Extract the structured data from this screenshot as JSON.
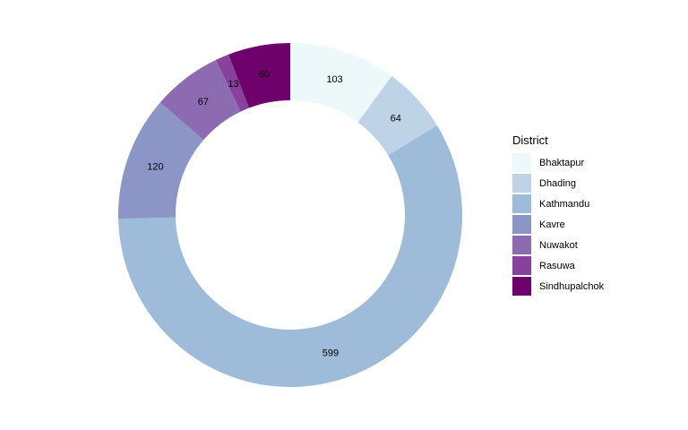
{
  "chart_data": {
    "type": "pie",
    "variant": "donut",
    "legend_title": "District",
    "legend_position": "right",
    "categories": [
      "Bhaktapur",
      "Dhading",
      "Kathmandu",
      "Kavre",
      "Nuwakot",
      "Rasuwa",
      "Sindhupalchok"
    ],
    "values": [
      103,
      64,
      599,
      120,
      67,
      13,
      60
    ],
    "colors": [
      "#edf8fb",
      "#bfd3e6",
      "#9ebcda",
      "#8c96c6",
      "#8c6bb1",
      "#88419d",
      "#6e016b"
    ],
    "grid": false
  }
}
